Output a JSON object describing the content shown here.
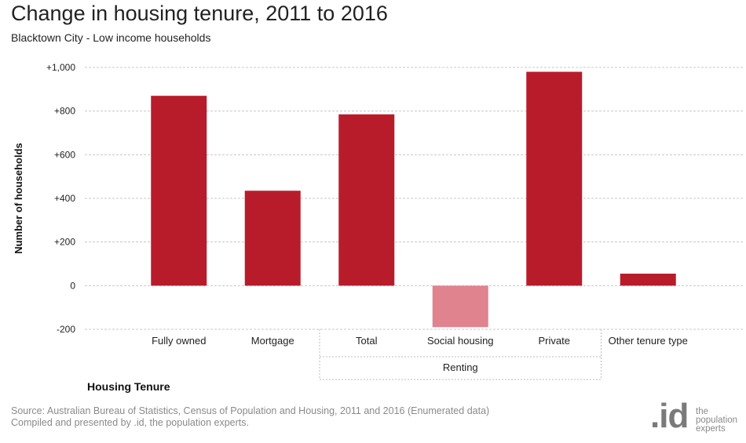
{
  "title": "Change in housing tenure, 2011 to 2016",
  "subtitle": "Blacktown City - Low income households",
  "footer": {
    "line1": "Source: Australian Bureau of Statistics, Census of Population and Housing, 2011 and 2016 (Enumerated data)",
    "line2": "Compiled and presented by .id, the population experts."
  },
  "logo": {
    "mark": ".id",
    "line1": "the",
    "line2": "population",
    "line3": "experts"
  },
  "chart_data": {
    "type": "bar",
    "title": "Change in housing tenure, 2011 to 2016",
    "subtitle": "Blacktown City - Low income households",
    "xlabel": "Housing Tenure",
    "ylabel": "Number of households",
    "ylim": [
      -200,
      1000
    ],
    "yticks": [
      1000,
      800,
      600,
      400,
      200,
      0,
      -200
    ],
    "ytick_labels": [
      "+1,000",
      "+800",
      "+600",
      "+400",
      "+200",
      "0",
      "-200"
    ],
    "categories": [
      "Fully owned",
      "Mortgage",
      "Total",
      "Social housing",
      "Private",
      "Other tenure type"
    ],
    "values": [
      870,
      435,
      785,
      -190,
      980,
      55
    ],
    "group_label": "Renting",
    "group_members": [
      "Total",
      "Social housing",
      "Private"
    ],
    "grid": true,
    "colors": {
      "positive": "#b81c2b",
      "negative": "#e0838f",
      "grid": "#c8c8c8",
      "group_border": "#bdbdbd"
    }
  }
}
